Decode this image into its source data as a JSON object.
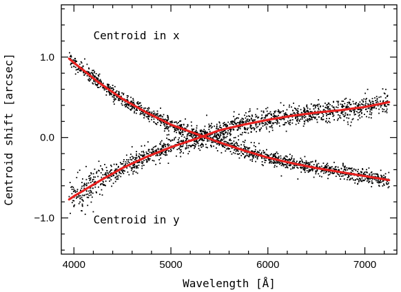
{
  "chart_data": {
    "type": "scatter",
    "title": "",
    "xlabel": "Wavelength [Å]",
    "ylabel": "Centroid shift [arcsec]",
    "xlim": [
      3870,
      7330
    ],
    "ylim": [
      -1.45,
      1.65
    ],
    "xticks": [
      4000,
      5000,
      6000,
      7000
    ],
    "yticks": [
      -1.0,
      0.0,
      1.0
    ],
    "xtick_labels": [
      "4000",
      "5000",
      "6000",
      "7000"
    ],
    "ytick_labels": [
      "−1.0",
      "0.0",
      "1.0"
    ],
    "grid": false,
    "legend": "none",
    "colors": {
      "points": "#000000",
      "fit": "#e8201e",
      "frame": "#000000"
    },
    "annotations": [
      {
        "text": "Centroid in x",
        "at": [
          4200,
          1.22
        ]
      },
      {
        "text": "Centroid in y",
        "at": [
          4200,
          -1.07
        ]
      }
    ],
    "series": [
      {
        "key": "x",
        "render": "points+fit",
        "x_range": [
          3950,
          7250
        ],
        "n_points": 1500,
        "scatter_sigma": 0.045,
        "fit": {
          "x": [
            3950,
            4000,
            4250,
            4500,
            4750,
            5000,
            5250,
            5500,
            5750,
            6000,
            6250,
            6500,
            6750,
            7000,
            7250
          ],
          "y": [
            0.98,
            0.93,
            0.69,
            0.48,
            0.31,
            0.16,
            0.05,
            -0.06,
            -0.16,
            -0.25,
            -0.32,
            -0.38,
            -0.43,
            -0.48,
            -0.53
          ]
        }
      },
      {
        "key": "y",
        "render": "points+fit",
        "x_range": [
          3950,
          7250
        ],
        "n_points": 1500,
        "scatter_sigma": 0.065,
        "fit": {
          "x": [
            3950,
            4000,
            4250,
            4500,
            4750,
            5000,
            5250,
            5500,
            5750,
            6000,
            6250,
            6500,
            6750,
            7000,
            7250
          ],
          "y": [
            -0.77,
            -0.73,
            -0.55,
            -0.38,
            -0.24,
            -0.12,
            -0.02,
            0.09,
            0.16,
            0.22,
            0.27,
            0.31,
            0.34,
            0.38,
            0.44
          ]
        }
      }
    ]
  }
}
